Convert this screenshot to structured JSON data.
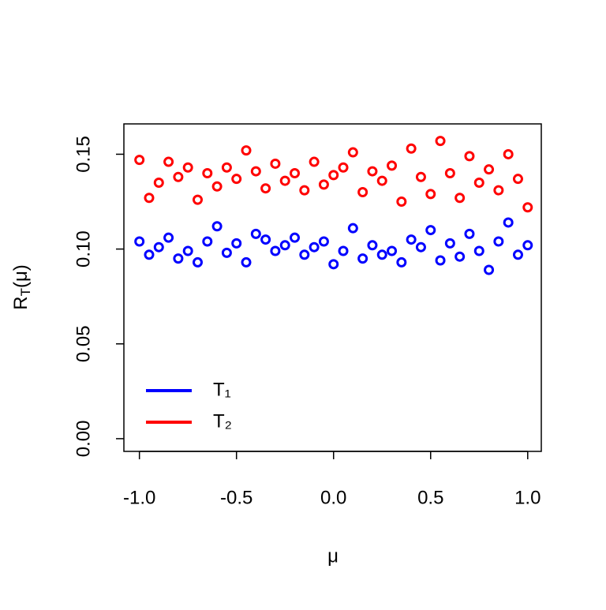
{
  "chart_data": {
    "type": "scatter",
    "xlabel": "μ",
    "ylabel": [
      "R",
      "T",
      "(μ)"
    ],
    "xlim": [
      -1.08,
      1.07
    ],
    "ylim": [
      -0.0067,
      0.166
    ],
    "xticks": [
      {
        "value": -1,
        "label": "-1.0"
      },
      {
        "value": -0.5,
        "label": "-0.5"
      },
      {
        "value": 0,
        "label": "0.0"
      },
      {
        "value": 0.5,
        "label": "0.5"
      },
      {
        "value": 1,
        "label": "1.0"
      }
    ],
    "yticks": [
      {
        "value": 0,
        "label": "0.00"
      },
      {
        "value": 0.05,
        "label": "0.05"
      },
      {
        "value": 0.1,
        "label": "0.10"
      },
      {
        "value": 0.15,
        "label": "0.15"
      }
    ],
    "legend": "bottom-left",
    "x": [
      -1,
      -0.95,
      -0.9,
      -0.85,
      -0.8,
      -0.75,
      -0.7,
      -0.65,
      -0.6,
      -0.55,
      -0.5,
      -0.45,
      -0.4,
      -0.35,
      -0.3,
      -0.25,
      -0.2,
      -0.15,
      -0.1,
      -0.05,
      0,
      0.05,
      0.1,
      0.15,
      0.2,
      0.25,
      0.3,
      0.35,
      0.4,
      0.45,
      0.5,
      0.55,
      0.6,
      0.65,
      0.7,
      0.75,
      0.8,
      0.85,
      0.9,
      0.95,
      1
    ],
    "series": [
      {
        "name": "T₁",
        "color": "#0000ff",
        "values": [
          0.104,
          0.097,
          0.101,
          0.106,
          0.095,
          0.099,
          0.093,
          0.104,
          0.112,
          0.098,
          0.103,
          0.093,
          0.108,
          0.105,
          0.099,
          0.102,
          0.106,
          0.097,
          0.101,
          0.104,
          0.092,
          0.099,
          0.111,
          0.095,
          0.102,
          0.097,
          0.099,
          0.093,
          0.105,
          0.101,
          0.11,
          0.094,
          0.103,
          0.096,
          0.108,
          0.099,
          0.089,
          0.104,
          0.114,
          0.097,
          0.102
        ]
      },
      {
        "name": "T₂",
        "color": "#ff0000",
        "values": [
          0.147,
          0.127,
          0.135,
          0.146,
          0.138,
          0.143,
          0.126,
          0.14,
          0.133,
          0.143,
          0.137,
          0.152,
          0.141,
          0.132,
          0.145,
          0.136,
          0.14,
          0.131,
          0.146,
          0.134,
          0.139,
          0.143,
          0.151,
          0.13,
          0.141,
          0.136,
          0.144,
          0.125,
          0.153,
          0.138,
          0.129,
          0.157,
          0.14,
          0.127,
          0.149,
          0.135,
          0.142,
          0.131,
          0.15,
          0.137,
          0.122
        ]
      }
    ]
  }
}
